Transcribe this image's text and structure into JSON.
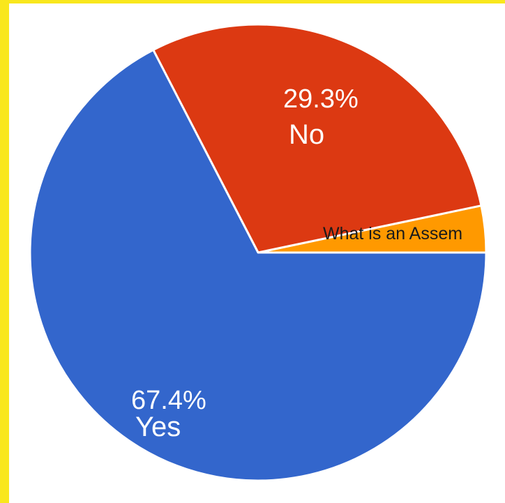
{
  "chart_data": {
    "type": "pie",
    "slices": [
      {
        "name": "Yes",
        "value": 67.4,
        "label": "67.4%",
        "color": "#3366cc"
      },
      {
        "name": "No",
        "value": 29.3,
        "label": "29.3%",
        "color": "#dc3912"
      },
      {
        "name": "What is an Assem",
        "value": 3.3,
        "label": "",
        "color": "#ff9900"
      }
    ],
    "title": "",
    "legend": "none",
    "start": "3 o'clock, counter-clockwise"
  },
  "colors": {
    "background": "#f9e71d",
    "plot_background": "#ffffff"
  }
}
